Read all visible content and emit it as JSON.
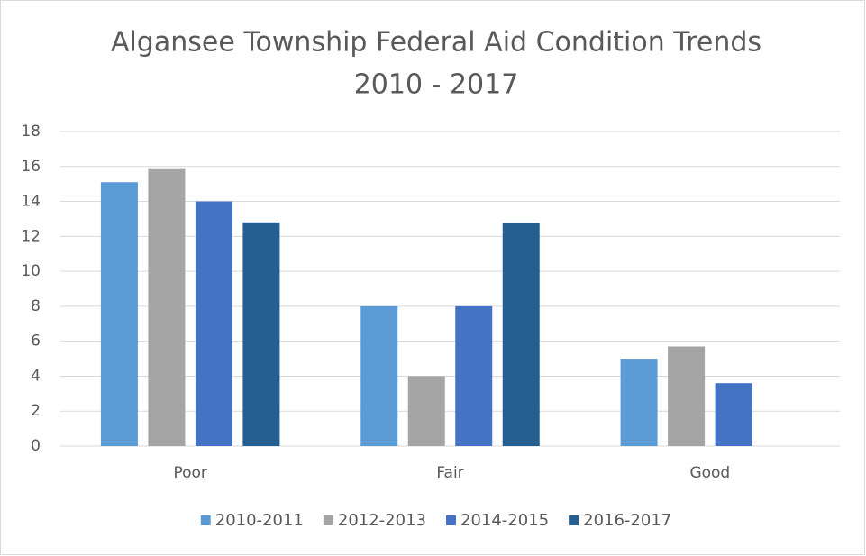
{
  "chart_data": {
    "type": "bar",
    "title": [
      "Algansee Township Federal Aid Condition Trends",
      "2010 - 2017"
    ],
    "categories": [
      "Poor",
      "Fair",
      "Good"
    ],
    "series": [
      {
        "name": "2010-2011",
        "color": "#5b9bd5",
        "values": [
          15.1,
          8,
          5
        ]
      },
      {
        "name": "2012-2013",
        "color": "#a5a5a5",
        "values": [
          15.9,
          4,
          5.7
        ]
      },
      {
        "name": "2014-2015",
        "color": "#4472c4",
        "values": [
          14,
          8,
          3.6
        ]
      },
      {
        "name": "2016-2017",
        "color": "#255e91",
        "values": [
          12.8,
          12.75,
          null
        ]
      }
    ],
    "ylim": [
      0,
      18
    ],
    "yticks": [
      0,
      2,
      4,
      6,
      8,
      10,
      12,
      14,
      16,
      18
    ],
    "grid": true,
    "legend": "bottom"
  }
}
